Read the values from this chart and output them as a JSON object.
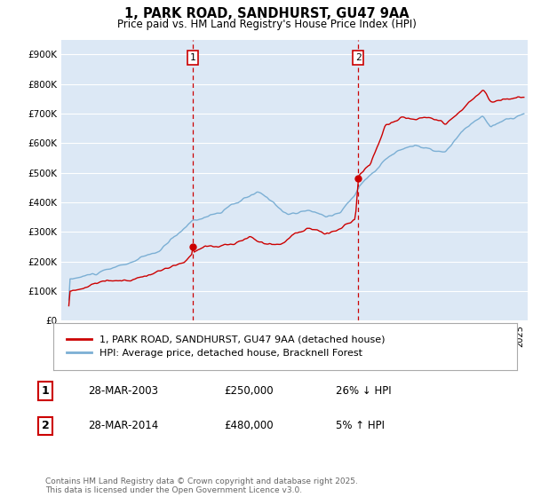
{
  "title": "1, PARK ROAD, SANDHURST, GU47 9AA",
  "subtitle": "Price paid vs. HM Land Registry's House Price Index (HPI)",
  "legend_line1": "1, PARK ROAD, SANDHURST, GU47 9AA (detached house)",
  "legend_line2": "HPI: Average price, detached house, Bracknell Forest",
  "annotation1": {
    "num": "1",
    "date": "28-MAR-2003",
    "price": "£250,000",
    "hpi": "26% ↓ HPI"
  },
  "annotation2": {
    "num": "2",
    "date": "28-MAR-2014",
    "price": "£480,000",
    "hpi": "5% ↑ HPI"
  },
  "vline1_x": 2003.23,
  "vline2_x": 2014.23,
  "sale1_x": 2003.23,
  "sale1_y": 250000,
  "sale2_x": 2014.23,
  "sale2_y": 480000,
  "ylim": [
    0,
    950000
  ],
  "xlim": [
    1994.5,
    2025.5
  ],
  "red_color": "#cc0000",
  "blue_color": "#7bafd4",
  "background_color": "#dce8f5",
  "footer": "Contains HM Land Registry data © Crown copyright and database right 2025.\nThis data is licensed under the Open Government Licence v3.0."
}
